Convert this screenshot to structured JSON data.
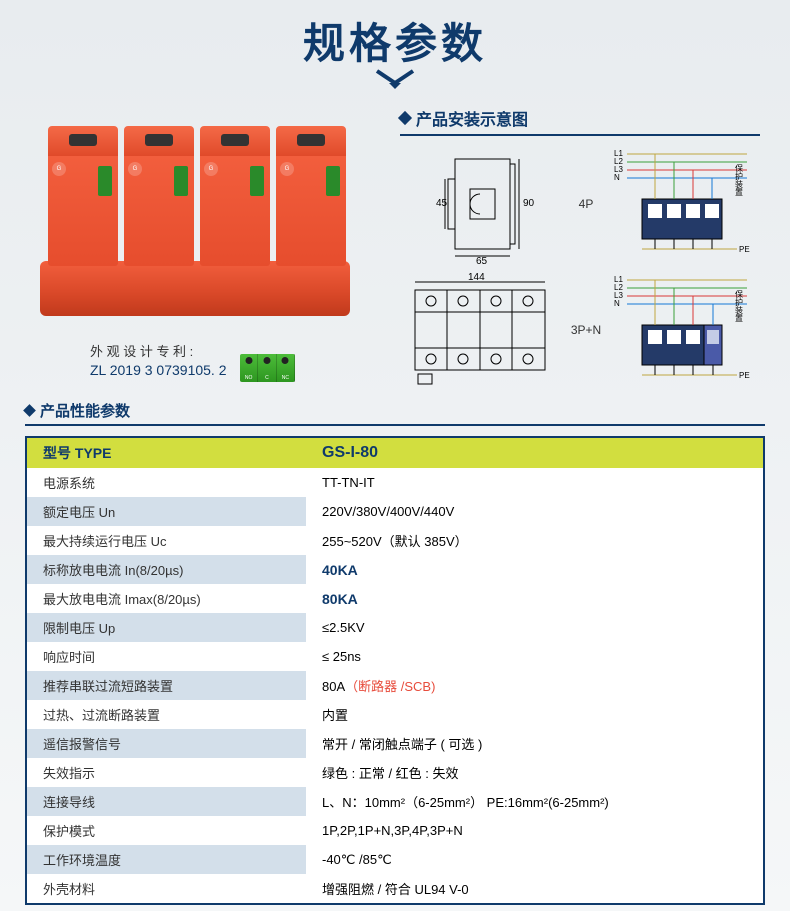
{
  "title": "规格参数",
  "patent": {
    "label": "外 观 设 计 专 利 :",
    "number": "ZL 2019 3 0739105. 2"
  },
  "sections": {
    "install": "产品安装示意图",
    "params": "产品性能参数"
  },
  "diagram_labels": {
    "p4": "4P",
    "p3n": "3P+N",
    "dim45": "45",
    "dim65": "65",
    "dim90": "90",
    "dim144": "144",
    "lines": [
      "L1",
      "L2",
      "L3",
      "N",
      "PE"
    ],
    "legend": "保护装置"
  },
  "table_header": {
    "type_label": "型号 TYPE",
    "type_value": "GS-I-80"
  },
  "rows": [
    {
      "k": "电源系统",
      "v": "TT-TN-IT"
    },
    {
      "k": "额定电压 Un",
      "v": "220V/380V/400V/440V"
    },
    {
      "k": "最大持续运行电压 Uc",
      "v": "255~520V（默认 385V）"
    },
    {
      "k": "标称放电电流 In(8/20µs)",
      "v": "40KA",
      "blue": true
    },
    {
      "k": "最大放电电流 Imax(8/20µs)",
      "v": "80KA",
      "blue": true
    },
    {
      "k": "限制电压 Up",
      "v": "≤2.5KV"
    },
    {
      "k": "响应时间",
      "v": "≤ 25ns"
    },
    {
      "k": "推荐串联过流短路装置",
      "v": "80A",
      "suffix": "（断路器 /SCB)",
      "red": true
    },
    {
      "k": "过热、过流断路装置",
      "v": "内置"
    },
    {
      "k": "遥信报警信号",
      "v": "常开 / 常闭触点端子 ( 可选 )"
    },
    {
      "k": "失效指示",
      "v": "绿色 : 正常 / 红色 : 失效"
    },
    {
      "k": "连接导线",
      "v": "L、N：10mm²（6-25mm²）    PE:16mm²(6-25mm²)"
    },
    {
      "k": "保护模式",
      "v": "1P,2P,1P+N,3P,4P,3P+N"
    },
    {
      "k": "工作环境温度",
      "v": "-40℃ /85℃"
    },
    {
      "k": "外壳材料",
      "v": "增强阻燃 / 符合 UL94 V-0"
    }
  ]
}
